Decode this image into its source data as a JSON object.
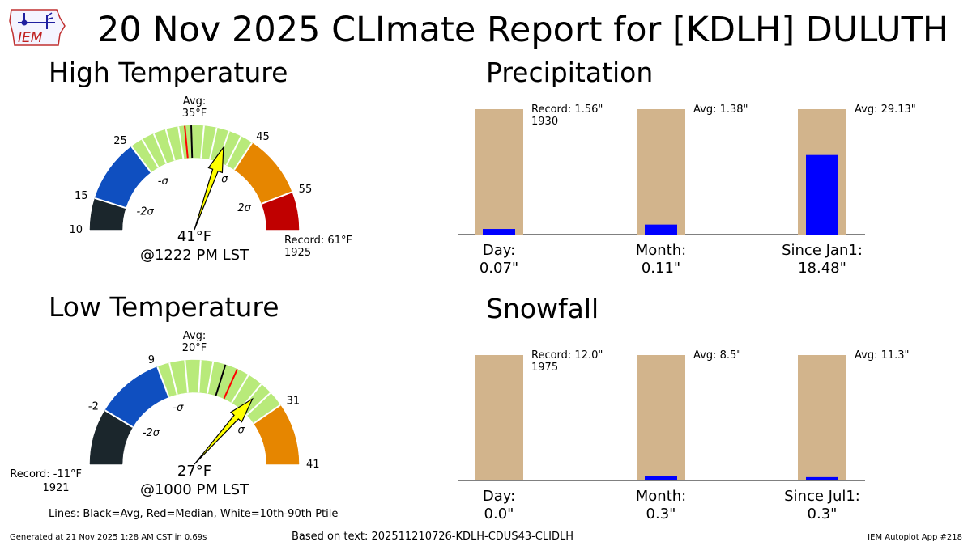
{
  "header": {
    "title": "20 Nov 2025 CLImate Report for [KDLH] DULUTH",
    "logo_text": "IEM"
  },
  "sections": {
    "high": "High Temperature",
    "low": "Low Temperature",
    "precip": "Precipitation",
    "snow": "Snowfall"
  },
  "footer": {
    "legend": "Lines: Black=Avg, Red=Median, White=10th-90th Ptile",
    "generated": "Generated at 21 Nov 2025 1:28 AM CST in 0.69s",
    "source": "Based on text: 202511210726-KDLH-CDUS43-CLIDLH",
    "app": "IEM Autoplot App #218"
  },
  "colors": {
    "band_m3": "#1b262c",
    "band_m2": "#0f4fc0",
    "band_m1": "#b8ea7a",
    "band_p1": "#b8ea7a",
    "band_p2": "#e68600",
    "band_p3": "#c00000",
    "needle": "#ffff00",
    "median": "#ff0000",
    "bar_bg": "#d2b48c",
    "bar_fg": "#0000ff"
  },
  "chart_data": [
    {
      "type": "gauge",
      "name": "high-gauge",
      "range": [
        10,
        61
      ],
      "tick_labels": [
        "10",
        "15",
        "25",
        "45",
        "55"
      ],
      "tick_values": [
        10,
        15,
        25,
        45,
        55
      ],
      "bands": [
        {
          "from": 10,
          "to": 15,
          "color_key": "band_m3"
        },
        {
          "from": 15,
          "to": 25,
          "color_key": "band_m2"
        },
        {
          "from": 25,
          "to": 35,
          "color_key": "band_m1"
        },
        {
          "from": 35,
          "to": 45,
          "color_key": "band_p1"
        },
        {
          "from": 45,
          "to": 55,
          "color_key": "band_p2"
        },
        {
          "from": 55,
          "to": 61,
          "color_key": "band_p3"
        }
      ],
      "sigma_labels": [
        {
          "text": "-2σ",
          "value": 15
        },
        {
          "text": "-σ",
          "value": 25
        },
        {
          "text": "σ",
          "value": 45
        },
        {
          "text": "2σ",
          "value": 55
        }
      ],
      "avg": 35,
      "median": 34,
      "percentile_lines": [
        27,
        29,
        31,
        33,
        37,
        39,
        41,
        43
      ],
      "needle_value": 41,
      "value_label": "41°F",
      "time_label": "@1222 PM LST",
      "avg_label": [
        "Avg:",
        "35°F"
      ],
      "record_label": [
        "Record: 61°F",
        "1925"
      ],
      "record_side": "right"
    },
    {
      "type": "gauge",
      "name": "low-gauge",
      "range": [
        -11,
        41
      ],
      "tick_labels": [
        "-2",
        "9",
        "31",
        "41"
      ],
      "tick_values": [
        -2,
        9,
        31,
        41
      ],
      "bands": [
        {
          "from": -11,
          "to": -2,
          "color_key": "band_m3"
        },
        {
          "from": -2,
          "to": 9,
          "color_key": "band_m2"
        },
        {
          "from": 9,
          "to": 20,
          "color_key": "band_m1"
        },
        {
          "from": 20,
          "to": 31,
          "color_key": "band_p1"
        },
        {
          "from": 31,
          "to": 41,
          "color_key": "band_p2"
        }
      ],
      "sigma_labels": [
        {
          "text": "-2σ",
          "value": -2
        },
        {
          "text": "-σ",
          "value": 9
        },
        {
          "text": "σ",
          "value": 31
        }
      ],
      "avg": 20,
      "median": 22,
      "percentile_lines": [
        11,
        13.5,
        16,
        18,
        24,
        26.5,
        28.5
      ],
      "needle_value": 27,
      "value_label": "27°F",
      "time_label": "@1000 PM LST",
      "avg_label": [
        "Avg:",
        "20°F"
      ],
      "record_label": [
        "Record: -11°F",
        "1921"
      ],
      "record_side": "left"
    },
    {
      "type": "bar",
      "name": "precip-bars",
      "categories": [
        "Day:",
        "Month:",
        "Since Jan1:"
      ],
      "values": [
        0.07,
        0.11,
        18.48
      ],
      "value_labels": [
        "0.07\"",
        "0.11\"",
        "18.48\""
      ],
      "max_ref": [
        1.56,
        1.38,
        29.13
      ],
      "ref_labels": [
        [
          "Record: 1.56\"",
          "1930"
        ],
        [
          "Avg: 1.38\""
        ],
        [
          "Avg: 29.13\""
        ]
      ]
    },
    {
      "type": "bar",
      "name": "snow-bars",
      "categories": [
        "Day:",
        "Month:",
        "Since Jul1:"
      ],
      "values": [
        0.0,
        0.3,
        0.3
      ],
      "value_labels": [
        "0.0\"",
        "0.3\"",
        "0.3\""
      ],
      "max_ref": [
        12.0,
        8.5,
        11.3
      ],
      "ref_labels": [
        [
          "Record: 12.0\"",
          "1975"
        ],
        [
          "Avg: 8.5\""
        ],
        [
          "Avg: 11.3\""
        ]
      ]
    }
  ]
}
